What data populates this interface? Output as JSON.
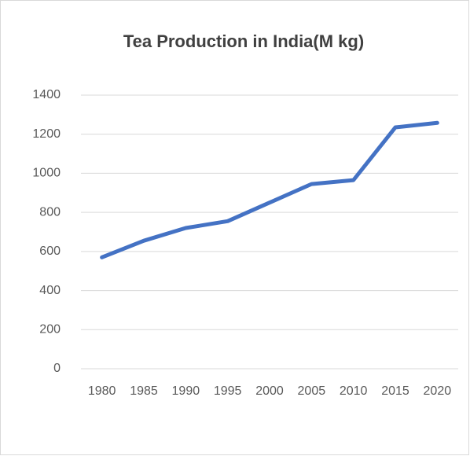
{
  "chart_data": {
    "type": "line",
    "title": "Tea Production in India(M kg)",
    "categories": [
      "1980",
      "1985",
      "1990",
      "1995",
      "2000",
      "2005",
      "2010",
      "2015",
      "2020"
    ],
    "series": [
      {
        "name": "Tea Production",
        "color": "#4472c4",
        "values": [
          570,
          655,
          720,
          755,
          850,
          945,
          965,
          1235,
          1258
        ]
      }
    ],
    "ylim": [
      0,
      1400
    ],
    "yticks": [
      0,
      200,
      400,
      600,
      800,
      1000,
      1200,
      1400
    ],
    "grid": true
  }
}
